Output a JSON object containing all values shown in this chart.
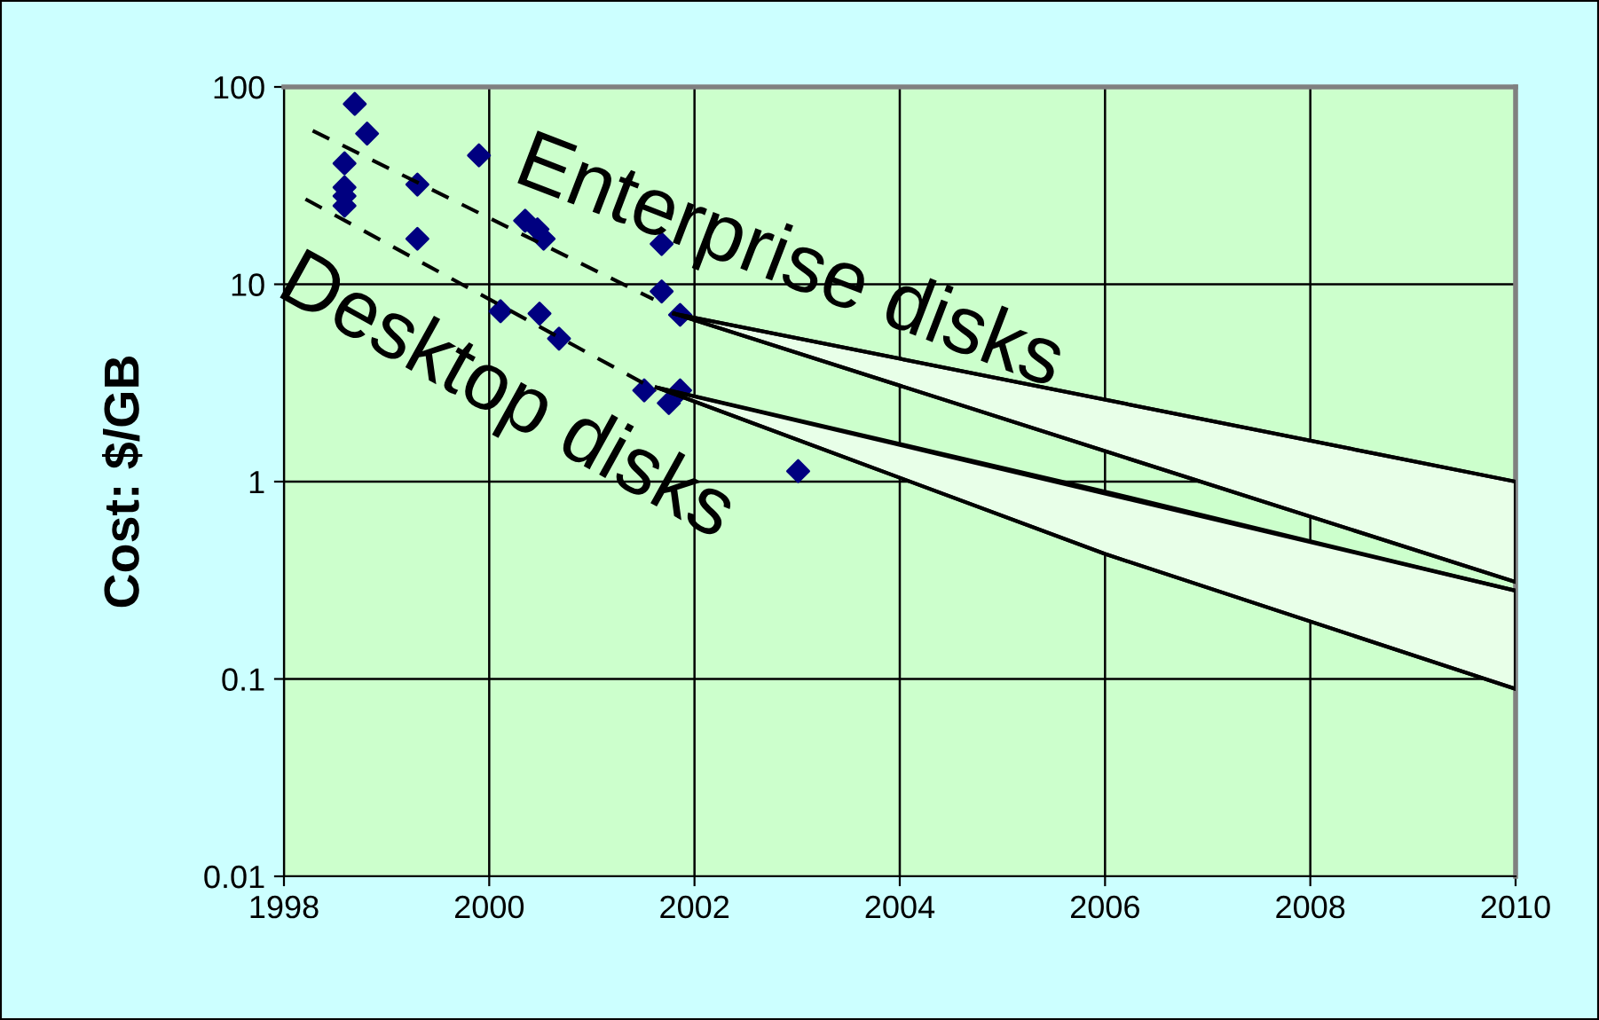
{
  "chart_data": {
    "type": "scatter",
    "ylabel": "Cost: $/GB",
    "log": "y",
    "grid": true,
    "xlim": [
      1998,
      2010
    ],
    "xticks": [
      1998,
      2000,
      2002,
      2004,
      2006,
      2008,
      2010
    ],
    "ylim": [
      0.01,
      100
    ],
    "yticks": [
      0.01,
      0.1,
      1,
      10,
      100
    ],
    "series": [
      {
        "color": "#000080",
        "marker": "diamond",
        "x": [
          1998.69,
          1998.81,
          1998.59,
          1998.59,
          1998.59,
          1998.59,
          1999.3,
          1999.9,
          1999.3,
          2000.35,
          2000.47,
          2000.53,
          2001.68,
          2001.68,
          2001.86,
          2000.11,
          2000.49,
          2000.68,
          2001.51,
          2001.86,
          2001.75,
          2003.01
        ],
        "values": [
          82,
          58,
          41,
          31,
          28,
          25,
          32,
          45,
          17,
          21,
          19,
          17,
          16,
          9.2,
          7.0,
          7.3,
          7.1,
          5.3,
          2.9,
          2.9,
          2.5,
          1.13
        ]
      },
      {
        "type": "line",
        "color": "#000000",
        "line_style": "dashed",
        "marker": "none",
        "x": [
          1998.28,
          2001.6
        ],
        "values": [
          60,
          8.4
        ]
      },
      {
        "type": "line",
        "color": "#000000",
        "line_style": "dashed",
        "marker": "none",
        "x": [
          1998.21,
          2001.63
        ],
        "values": [
          27,
          2.9
        ]
      },
      {
        "type": "line",
        "color": "#000000",
        "line_style": "solid",
        "marker": "none",
        "x": [
          2001.8,
          2010
        ],
        "values": [
          7.1,
          1.0
        ],
        "lower": [
          7.1,
          0.31
        ],
        "upper": [
          7.1,
          1.0
        ]
      },
      {
        "type": "line",
        "color": "#000000",
        "line_style": "solid",
        "marker": "none",
        "x": [
          2001.8,
          2010
        ],
        "values": [
          7.1,
          0.31
        ]
      },
      {
        "type": "line",
        "color": "#000000",
        "line_style": "solid",
        "marker": "none",
        "x": [
          2001.63,
          2006.0,
          2010
        ],
        "values": [
          3.0,
          0.43,
          0.089
        ],
        "lower": [
          3.0,
          0.43,
          0.089
        ],
        "upper": [
          3.0,
          0.89,
          0.28
        ]
      },
      {
        "type": "line",
        "color": "#000000",
        "line_style": "solid",
        "marker": "none",
        "x": [
          2001.63,
          2010
        ],
        "values": [
          3.0,
          0.28
        ]
      }
    ],
    "annotations": [
      "Enterprise disks",
      "Desktop disks"
    ]
  }
}
